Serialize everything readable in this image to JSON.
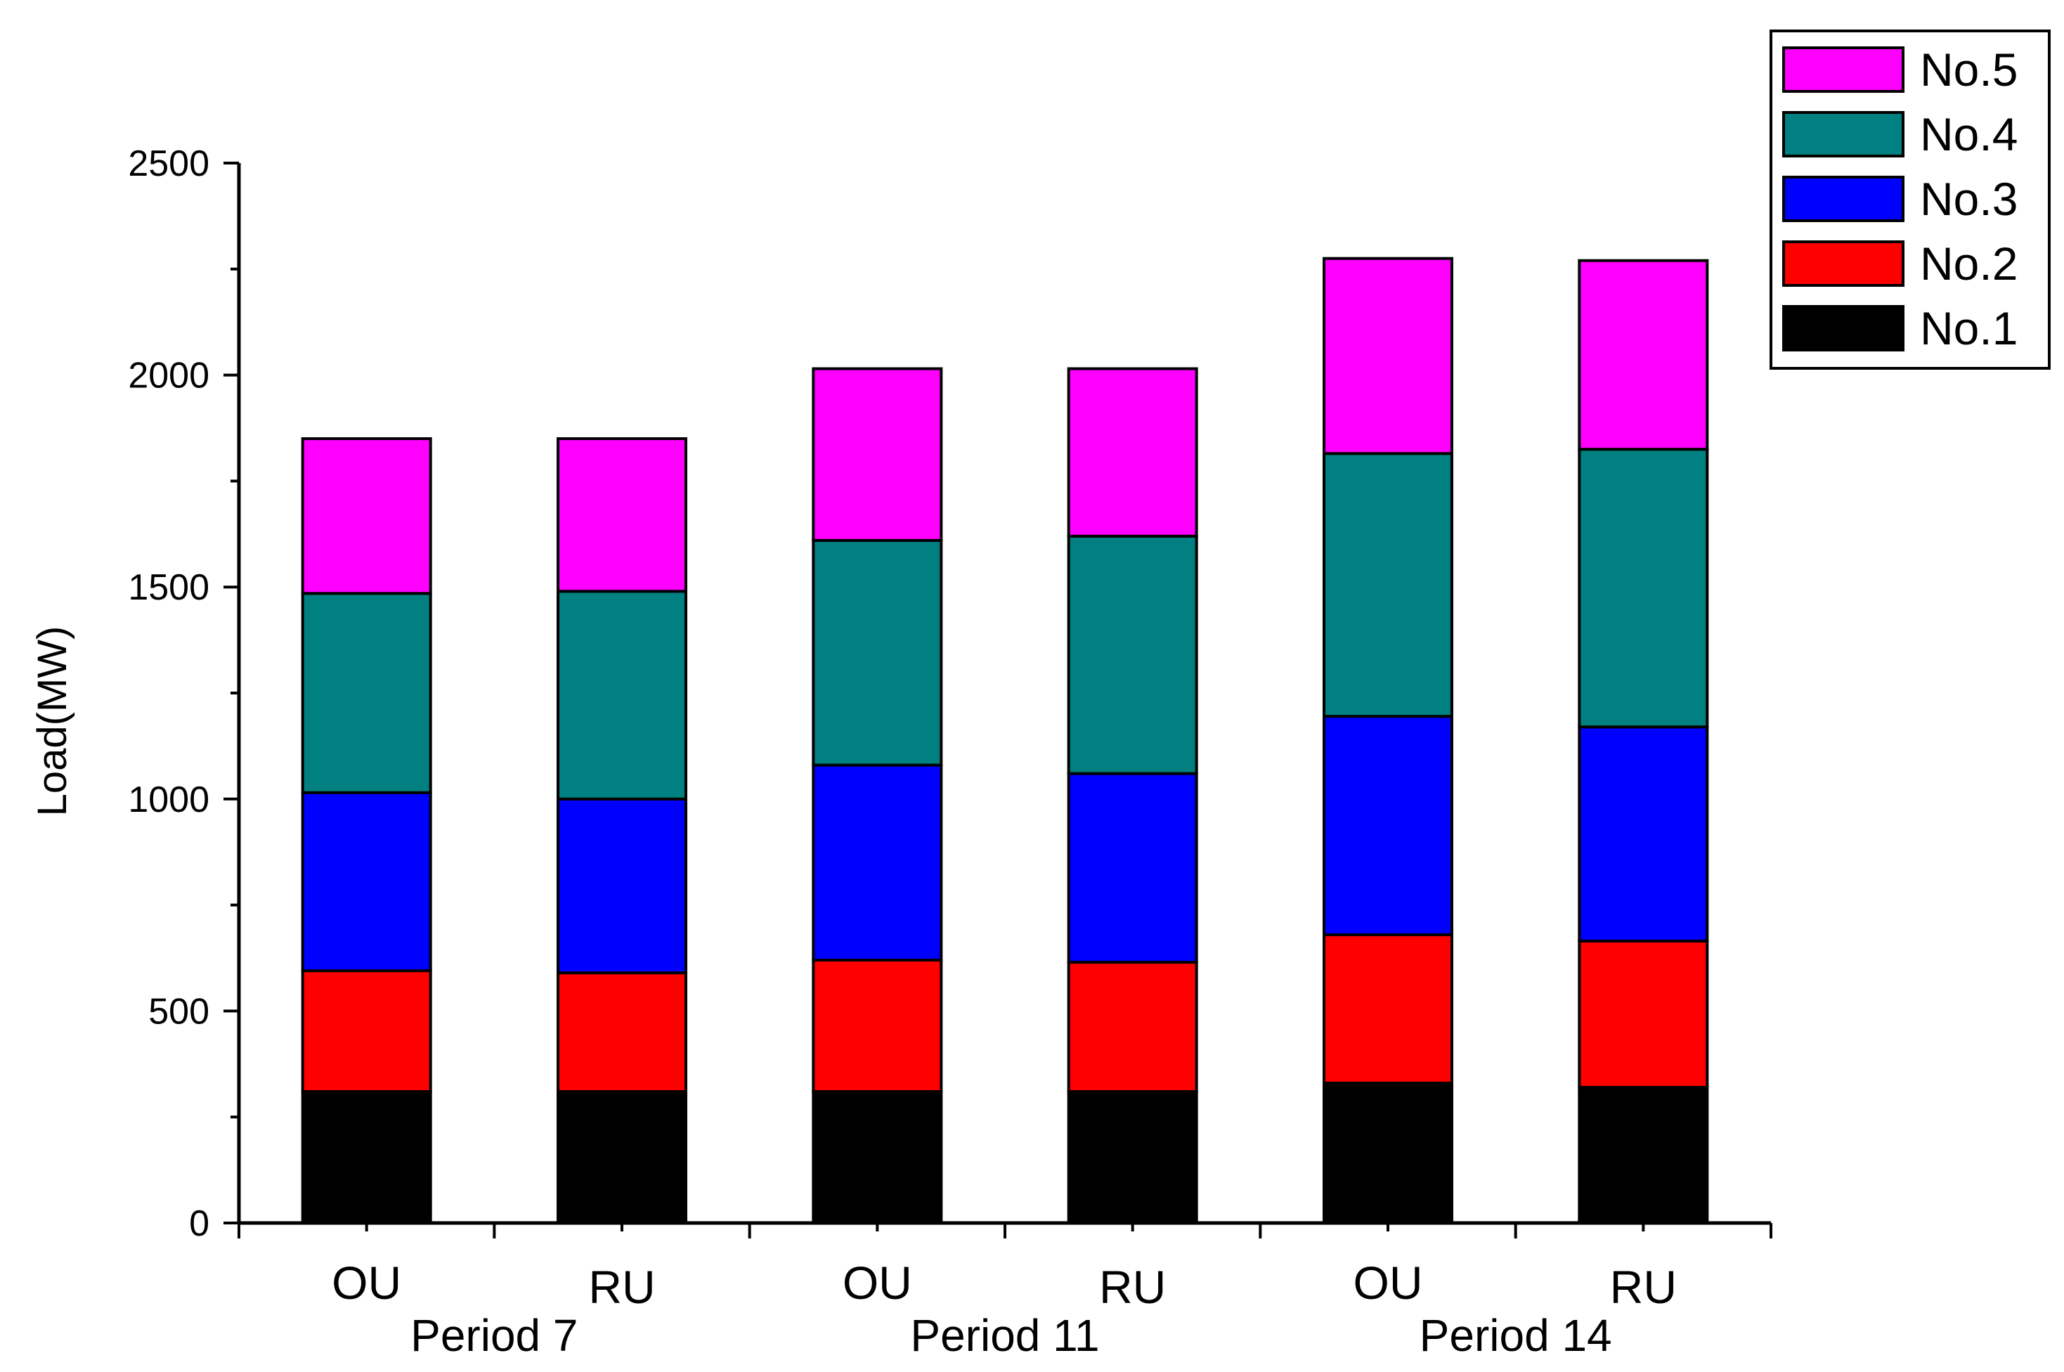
{
  "chart_data": {
    "type": "bar",
    "stacked": true,
    "ylabel": "Load(MW)",
    "xlabel": "",
    "ylim": [
      0,
      2500
    ],
    "yticks": [
      0,
      500,
      1000,
      1500,
      2000,
      2500
    ],
    "grid": false,
    "legend_position": "top-right",
    "categories": [
      "OU",
      "RU",
      "OU",
      "RU",
      "OU",
      "RU"
    ],
    "groups": [
      {
        "label": "Period 7",
        "categories": [
          0,
          1
        ]
      },
      {
        "label": "Period 11",
        "categories": [
          2,
          3
        ]
      },
      {
        "label": "Period 14",
        "categories": [
          4,
          5
        ]
      }
    ],
    "series": [
      {
        "name": "No.1",
        "color": "#000000",
        "values": [
          310,
          310,
          310,
          310,
          330,
          320
        ]
      },
      {
        "name": "No.2",
        "color": "#ff0000",
        "values": [
          285,
          280,
          310,
          305,
          350,
          345
        ]
      },
      {
        "name": "No.3",
        "color": "#0000ff",
        "values": [
          420,
          410,
          460,
          445,
          515,
          505
        ]
      },
      {
        "name": "No.4",
        "color": "#008080",
        "values": [
          470,
          490,
          530,
          560,
          620,
          655
        ]
      },
      {
        "name": "No.5",
        "color": "#ff00ff",
        "values": [
          365,
          360,
          405,
          395,
          460,
          445
        ]
      }
    ],
    "legend_order": [
      4,
      3,
      2,
      1,
      0
    ]
  }
}
